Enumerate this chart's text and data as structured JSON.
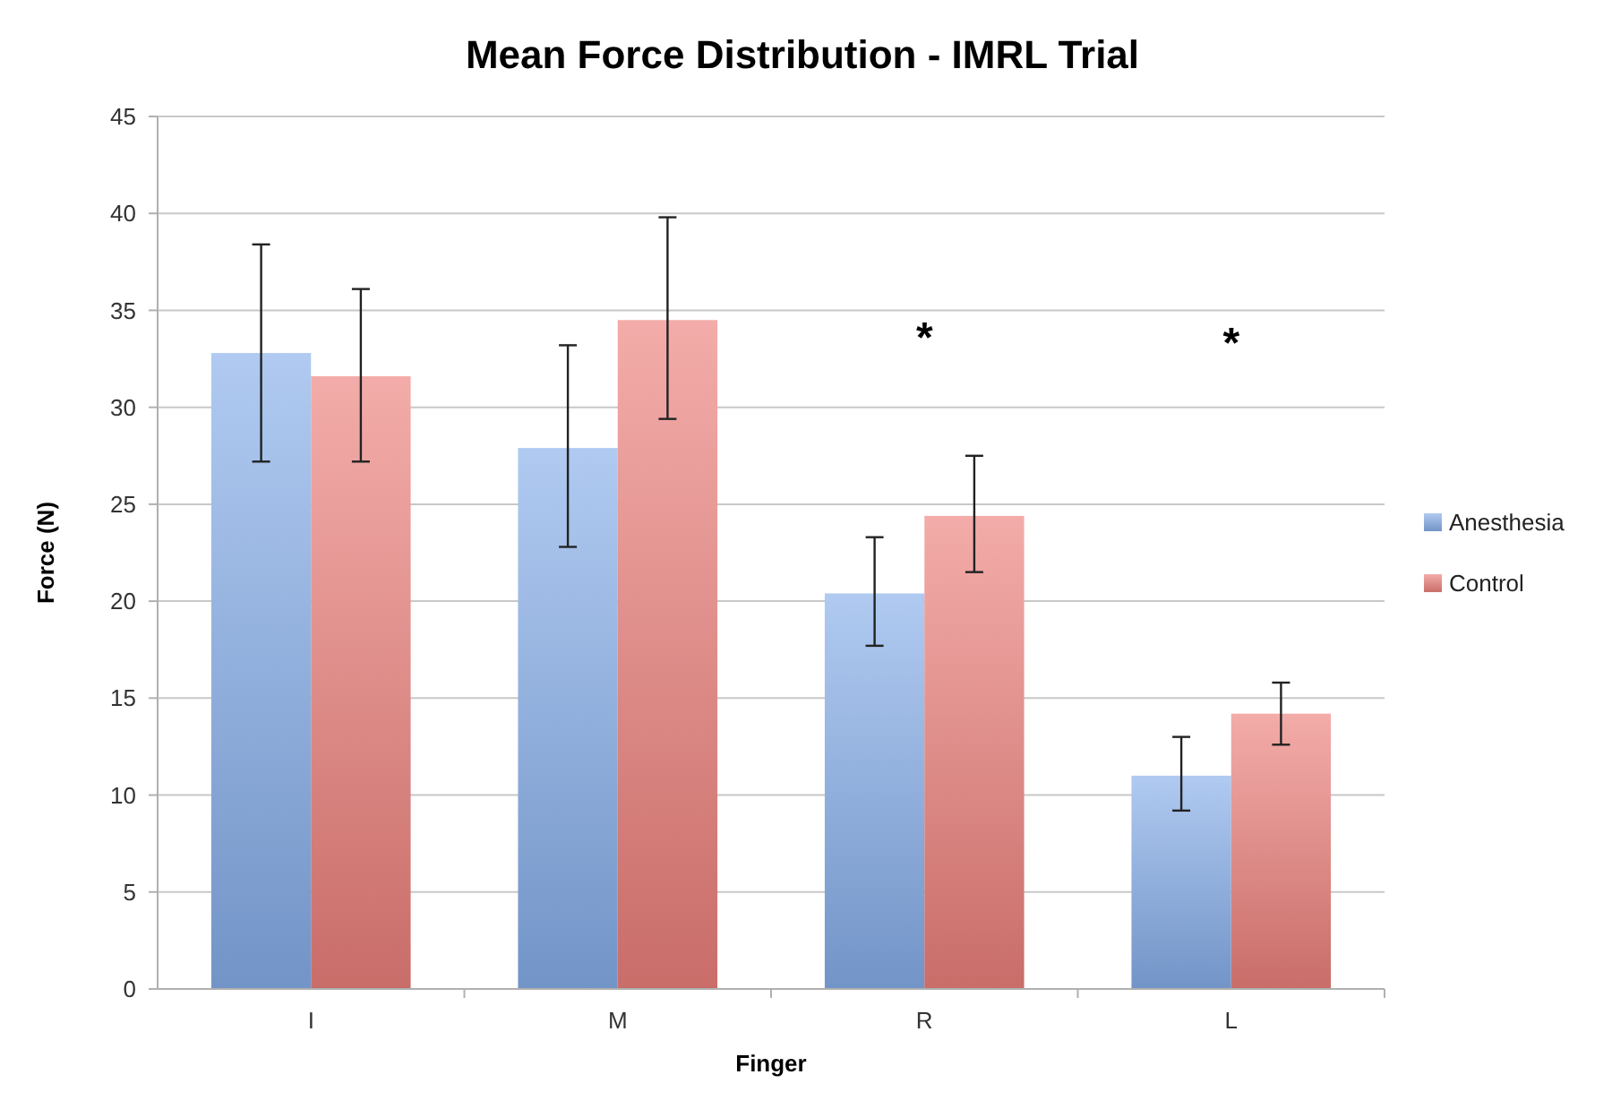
{
  "chart_data": {
    "type": "bar",
    "title": "Mean Force Distribution - IMRL Trial",
    "xlabel": "Finger",
    "ylabel": "Force (N)",
    "categories": [
      "I",
      "M",
      "R",
      "L"
    ],
    "series": [
      {
        "name": "Anesthesia",
        "color": "#86aeea",
        "values": [
          32.8,
          27.9,
          20.4,
          11.0
        ],
        "errors": [
          [
            27.2,
            38.4
          ],
          [
            22.8,
            33.2
          ],
          [
            17.7,
            23.3
          ],
          [
            9.2,
            13.0
          ]
        ]
      },
      {
        "name": "Control",
        "color": "#ec807b",
        "values": [
          31.6,
          34.5,
          24.4,
          14.2
        ],
        "errors": [
          [
            27.2,
            36.1
          ],
          [
            29.4,
            39.8
          ],
          [
            21.5,
            27.5
          ],
          [
            12.6,
            15.8
          ]
        ]
      }
    ],
    "annotations": [
      "*",
      "*"
    ],
    "ylim": [
      0,
      45
    ],
    "yticks": [
      0,
      5,
      10,
      15,
      20,
      25,
      30,
      35,
      40,
      45
    ],
    "grid": "y",
    "legend": "right"
  }
}
